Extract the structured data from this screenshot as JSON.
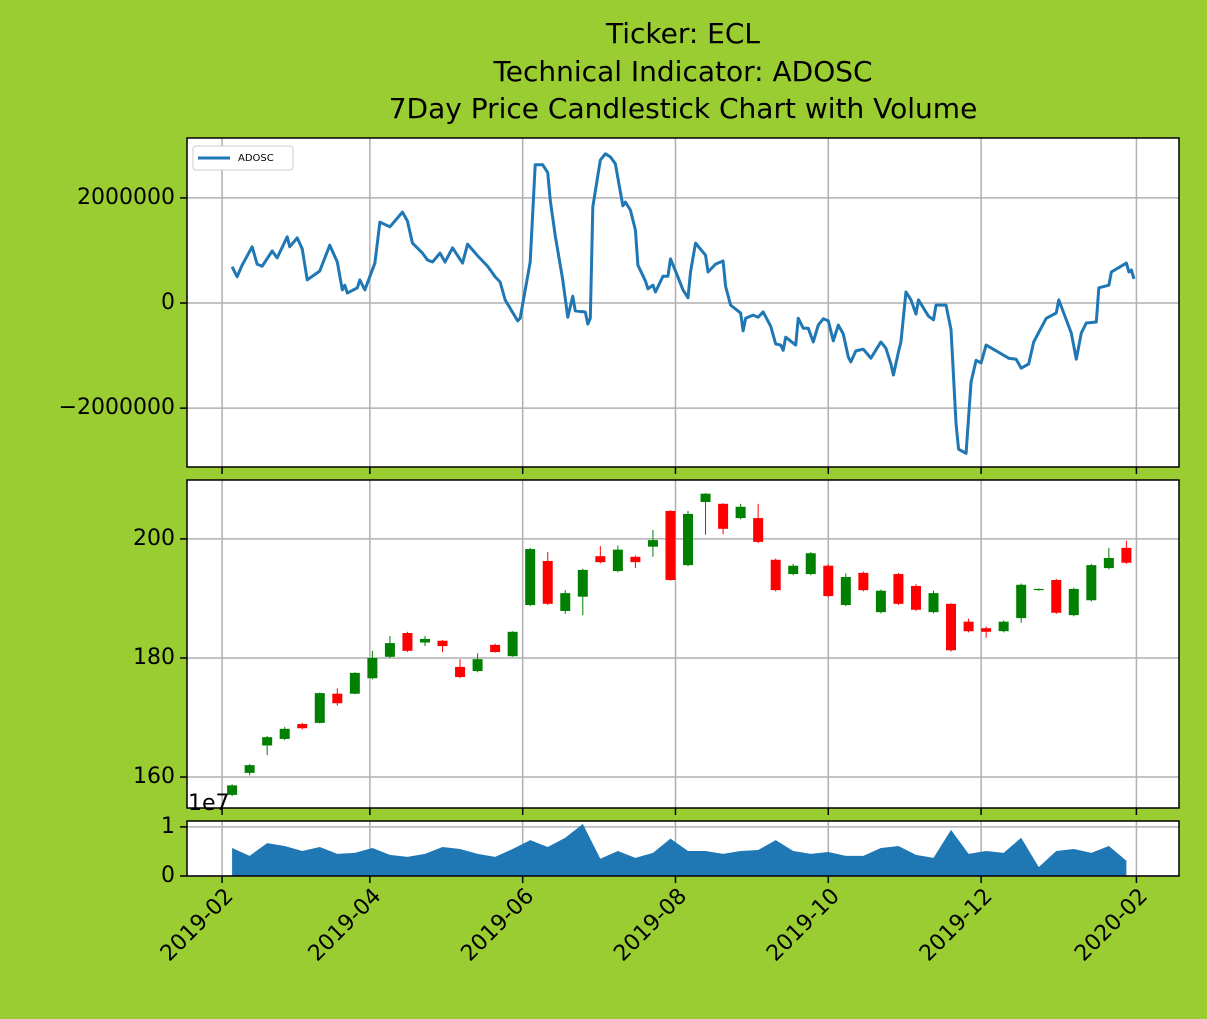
{
  "chart_data": [
    {
      "type": "line",
      "title": [
        "Ticker: ECL",
        "Technical Indicator: ADOSC",
        "7Day Price Candlestick Chart with Volume"
      ],
      "legend": "upper left",
      "grid": true,
      "ylim": [
        -3120000,
        3140000
      ],
      "yticks": [
        2000000,
        0,
        {
          "value": -2000000,
          "label": "−2000000"
        }
      ],
      "series": [
        {
          "name": "ADOSC",
          "color": "#1f77b4",
          "x": [
            "2019-02-05",
            "2019-02-07",
            "2019-02-09",
            "2019-02-13",
            "2019-02-15",
            "2019-02-17",
            "2019-02-21",
            "2019-02-23",
            "2019-02-27",
            "2019-02-28",
            "2019-03-03",
            "2019-03-05",
            "2019-03-07",
            "2019-03-12",
            "2019-03-16",
            "2019-03-19",
            "2019-03-21",
            "2019-03-22",
            "2019-03-23",
            "2019-03-27",
            "2019-03-28",
            "2019-03-30",
            "2019-04-03",
            "2019-04-05",
            "2019-04-09",
            "2019-04-14",
            "2019-04-16",
            "2019-04-18",
            "2019-04-22",
            "2019-04-24",
            "2019-04-26",
            "2019-04-29",
            "2019-05-01",
            "2019-05-04",
            "2019-05-08",
            "2019-05-10",
            "2019-05-14",
            "2019-05-18",
            "2019-05-21",
            "2019-05-23",
            "2019-05-25",
            "2019-05-30",
            "2019-05-31",
            "2019-06-04",
            "2019-06-06",
            "2019-06-09",
            "2019-06-11",
            "2019-06-12",
            "2019-06-14",
            "2019-06-17",
            "2019-06-19",
            "2019-06-21",
            "2019-06-22",
            "2019-06-26",
            "2019-06-27",
            "2019-06-28",
            "2019-06-29",
            "2019-07-02",
            "2019-07-04",
            "2019-07-06",
            "2019-07-08",
            "2019-07-09",
            "2019-07-11",
            "2019-07-12",
            "2019-07-14",
            "2019-07-16",
            "2019-07-17",
            "2019-07-20",
            "2019-07-21",
            "2019-07-23",
            "2019-07-24",
            "2019-07-27",
            "2019-07-29",
            "2019-07-30",
            "2019-08-01",
            "2019-08-04",
            "2019-08-06",
            "2019-08-07",
            "2019-08-09",
            "2019-08-13",
            "2019-08-14",
            "2019-08-17",
            "2019-08-20",
            "2019-08-21",
            "2019-08-23",
            "2019-08-27",
            "2019-08-28",
            "2019-08-29",
            "2019-09-01",
            "2019-09-03",
            "2019-09-05",
            "2019-09-08",
            "2019-09-10",
            "2019-09-12",
            "2019-09-13",
            "2019-09-14",
            "2019-09-18",
            "2019-09-19",
            "2019-09-21",
            "2019-09-23",
            "2019-09-25",
            "2019-09-27",
            "2019-09-29",
            "2019-10-01",
            "2019-10-03",
            "2019-10-05",
            "2019-10-07",
            "2019-10-09",
            "2019-10-10",
            "2019-10-12",
            "2019-10-15",
            "2019-10-18",
            "2019-10-22",
            "2019-10-24",
            "2019-10-26",
            "2019-10-27",
            "2019-10-29",
            "2019-10-30",
            "2019-11-01",
            "2019-11-03",
            "2019-11-05",
            "2019-11-06",
            "2019-11-10",
            "2019-11-12",
            "2019-11-13",
            "2019-11-17",
            "2019-11-19",
            "2019-11-21",
            "2019-11-22",
            "2019-11-25",
            "2019-11-27",
            "2019-11-29",
            "2019-12-01",
            "2019-12-03",
            "2019-12-07",
            "2019-12-12",
            "2019-12-15",
            "2019-12-17",
            "2019-12-20",
            "2019-12-22",
            "2019-12-27",
            "2019-12-31",
            "2020-01-01",
            "2020-01-06",
            "2020-01-08",
            "2020-01-10",
            "2020-01-12",
            "2020-01-16",
            "2020-01-17",
            "2020-01-21",
            "2020-01-22",
            "2020-01-28",
            "2020-01-29",
            "2020-01-30",
            "2020-01-31"
          ],
          "values": [
            690000,
            500000,
            720000,
            1070000,
            740000,
            700000,
            990000,
            860000,
            1260000,
            1070000,
            1240000,
            1030000,
            440000,
            610000,
            1100000,
            780000,
            250000,
            340000,
            190000,
            290000,
            440000,
            250000,
            760000,
            1540000,
            1450000,
            1730000,
            1560000,
            1140000,
            950000,
            820000,
            780000,
            950000,
            780000,
            1050000,
            760000,
            1120000,
            900000,
            700000,
            500000,
            400000,
            60000,
            -340000,
            -290000,
            780000,
            2630000,
            2630000,
            2480000,
            1960000,
            1280000,
            440000,
            -270000,
            130000,
            -150000,
            -170000,
            -400000,
            -290000,
            1830000,
            2720000,
            2840000,
            2780000,
            2650000,
            2380000,
            1850000,
            1920000,
            1770000,
            1390000,
            720000,
            420000,
            270000,
            340000,
            210000,
            510000,
            510000,
            840000,
            610000,
            250000,
            100000,
            590000,
            1140000,
            910000,
            590000,
            740000,
            800000,
            320000,
            -40000,
            -190000,
            -530000,
            -290000,
            -230000,
            -270000,
            -170000,
            -440000,
            -780000,
            -800000,
            -900000,
            -650000,
            -800000,
            -290000,
            -480000,
            -480000,
            -740000,
            -420000,
            -300000,
            -340000,
            -720000,
            -420000,
            -590000,
            -1030000,
            -1120000,
            -910000,
            -880000,
            -1050000,
            -740000,
            -860000,
            -1160000,
            -1370000,
            -930000,
            -740000,
            210000,
            60000,
            -210000,
            60000,
            -250000,
            -320000,
            -40000,
            -40000,
            -510000,
            -2300000,
            -2780000,
            -2860000,
            -1500000,
            -1090000,
            -1140000,
            -800000,
            -910000,
            -1050000,
            -1070000,
            -1240000,
            -1160000,
            -740000,
            -290000,
            -190000,
            60000,
            -570000,
            -1070000,
            -570000,
            -380000,
            -360000,
            290000,
            340000,
            590000,
            760000,
            590000,
            630000,
            460000
          ]
        }
      ]
    },
    {
      "type": "candlestick",
      "grid": true,
      "up_color": "#008000",
      "down_color": "#ff0000",
      "ylim": [
        154.8,
        209.9
      ],
      "yticks": [
        160,
        180,
        200
      ],
      "x": [
        "2019-02-05",
        "2019-02-12",
        "2019-02-19",
        "2019-02-26",
        "2019-03-05",
        "2019-03-12",
        "2019-03-19",
        "2019-03-26",
        "2019-04-02",
        "2019-04-09",
        "2019-04-16",
        "2019-04-23",
        "2019-04-30",
        "2019-05-07",
        "2019-05-14",
        "2019-05-21",
        "2019-05-28",
        "2019-06-04",
        "2019-06-11",
        "2019-06-18",
        "2019-06-25",
        "2019-07-02",
        "2019-07-09",
        "2019-07-16",
        "2019-07-23",
        "2019-07-30",
        "2019-08-06",
        "2019-08-13",
        "2019-08-20",
        "2019-08-27",
        "2019-09-03",
        "2019-09-10",
        "2019-09-17",
        "2019-09-24",
        "2019-10-01",
        "2019-10-08",
        "2019-10-15",
        "2019-10-22",
        "2019-10-29",
        "2019-11-05",
        "2019-11-12",
        "2019-11-19",
        "2019-11-26",
        "2019-12-03",
        "2019-12-10",
        "2019-12-17",
        "2019-12-24",
        "2019-12-31",
        "2020-01-07",
        "2020-01-14",
        "2020-01-21",
        "2020-01-28"
      ],
      "open": [
        157.0,
        160.7,
        165.3,
        166.4,
        168.9,
        169.1,
        174.0,
        174.0,
        176.6,
        180.2,
        184.2,
        182.6,
        182.9,
        178.5,
        177.8,
        182.2,
        180.3,
        188.9,
        196.3,
        187.9,
        190.3,
        197.1,
        194.6,
        197.0,
        198.7,
        204.7,
        195.6,
        206.2,
        205.9,
        203.5,
        203.5,
        196.5,
        194.1,
        194.1,
        195.5,
        188.9,
        194.3,
        187.7,
        194.1,
        192.1,
        187.7,
        189.1,
        186.1,
        185.0,
        184.5,
        186.7,
        191.4,
        193.1,
        187.2,
        189.7,
        195.1,
        198.5
      ],
      "high": [
        158.8,
        162.2,
        166.9,
        168.4,
        169.1,
        174.2,
        174.9,
        177.6,
        181.2,
        183.7,
        184.4,
        183.7,
        183.0,
        179.8,
        180.8,
        182.4,
        184.5,
        198.5,
        197.8,
        191.4,
        195.0,
        198.8,
        198.9,
        197.2,
        201.5,
        204.8,
        204.7,
        207.7,
        206.0,
        205.9,
        205.9,
        196.7,
        195.8,
        197.8,
        195.7,
        194.2,
        194.5,
        191.5,
        194.3,
        192.4,
        191.3,
        189.2,
        186.6,
        185.3,
        186.3,
        192.5,
        191.7,
        193.3,
        191.8,
        195.8,
        198.5,
        199.7
      ],
      "low": [
        156.8,
        160.3,
        163.7,
        166.2,
        168.0,
        169.0,
        172.0,
        173.9,
        176.4,
        180.0,
        181.0,
        182.0,
        181.0,
        176.6,
        177.6,
        180.9,
        180.2,
        188.7,
        188.9,
        187.4,
        187.2,
        195.9,
        194.4,
        195.1,
        197.0,
        193.0,
        195.4,
        200.7,
        200.8,
        203.3,
        199.3,
        191.2,
        193.9,
        193.9,
        190.2,
        188.7,
        191.2,
        187.5,
        188.9,
        187.9,
        187.5,
        181.1,
        184.3,
        183.4,
        184.3,
        185.9,
        191.3,
        187.4,
        187.0,
        189.5,
        194.9,
        195.8
      ],
      "close": [
        158.6,
        162.0,
        166.7,
        168.1,
        168.2,
        174.1,
        172.4,
        177.5,
        180.0,
        182.5,
        181.2,
        183.2,
        182.0,
        176.8,
        179.8,
        181.0,
        184.4,
        198.3,
        189.1,
        190.9,
        194.8,
        196.1,
        198.2,
        196.1,
        199.8,
        193.1,
        204.2,
        207.6,
        201.7,
        205.4,
        199.5,
        191.4,
        195.5,
        197.6,
        190.4,
        193.6,
        191.4,
        191.3,
        189.1,
        188.1,
        190.9,
        181.3,
        184.5,
        184.4,
        186.1,
        192.3,
        191.6,
        187.6,
        191.6,
        195.6,
        196.8,
        196.0
      ]
    },
    {
      "type": "area",
      "grid": true,
      "color": "#1f77b4",
      "ylim": [
        0,
        11200000
      ],
      "yticks": [
        0,
        {
          "value": 10000000,
          "label": "1"
        }
      ],
      "y_offset_label": "1e7",
      "xlim": [
        "2019-01-18",
        "2020-02-18"
      ],
      "xticks": [
        "2019-02",
        "2019-04",
        "2019-06",
        "2019-08",
        "2019-10",
        "2019-12",
        "2020-02"
      ],
      "x": [
        "2019-02-05",
        "2019-02-12",
        "2019-02-19",
        "2019-02-26",
        "2019-03-05",
        "2019-03-12",
        "2019-03-19",
        "2019-03-26",
        "2019-04-02",
        "2019-04-09",
        "2019-04-16",
        "2019-04-23",
        "2019-04-30",
        "2019-05-07",
        "2019-05-14",
        "2019-05-21",
        "2019-05-28",
        "2019-06-04",
        "2019-06-11",
        "2019-06-18",
        "2019-06-25",
        "2019-07-02",
        "2019-07-09",
        "2019-07-16",
        "2019-07-23",
        "2019-07-30",
        "2019-08-06",
        "2019-08-13",
        "2019-08-20",
        "2019-08-27",
        "2019-09-03",
        "2019-09-10",
        "2019-09-17",
        "2019-09-24",
        "2019-10-01",
        "2019-10-08",
        "2019-10-15",
        "2019-10-22",
        "2019-10-29",
        "2019-11-05",
        "2019-11-12",
        "2019-11-19",
        "2019-11-26",
        "2019-12-03",
        "2019-12-10",
        "2019-12-17",
        "2019-12-24",
        "2019-12-31",
        "2020-01-07",
        "2020-01-14",
        "2020-01-21",
        "2020-01-28"
      ],
      "values": [
        5700000,
        4100000,
        6700000,
        6100000,
        5100000,
        5900000,
        4500000,
        4700000,
        5700000,
        4300000,
        3900000,
        4500000,
        5900000,
        5500000,
        4500000,
        3900000,
        5500000,
        7300000,
        5900000,
        7800000,
        10600000,
        3500000,
        5100000,
        3700000,
        4700000,
        7600000,
        5100000,
        5100000,
        4500000,
        5100000,
        5300000,
        7300000,
        5100000,
        4500000,
        4900000,
        4100000,
        4100000,
        5700000,
        6100000,
        4300000,
        3700000,
        9400000,
        4500000,
        5100000,
        4700000,
        7800000,
        1800000,
        5100000,
        5500000,
        4700000,
        6100000,
        3100000
      ]
    }
  ]
}
